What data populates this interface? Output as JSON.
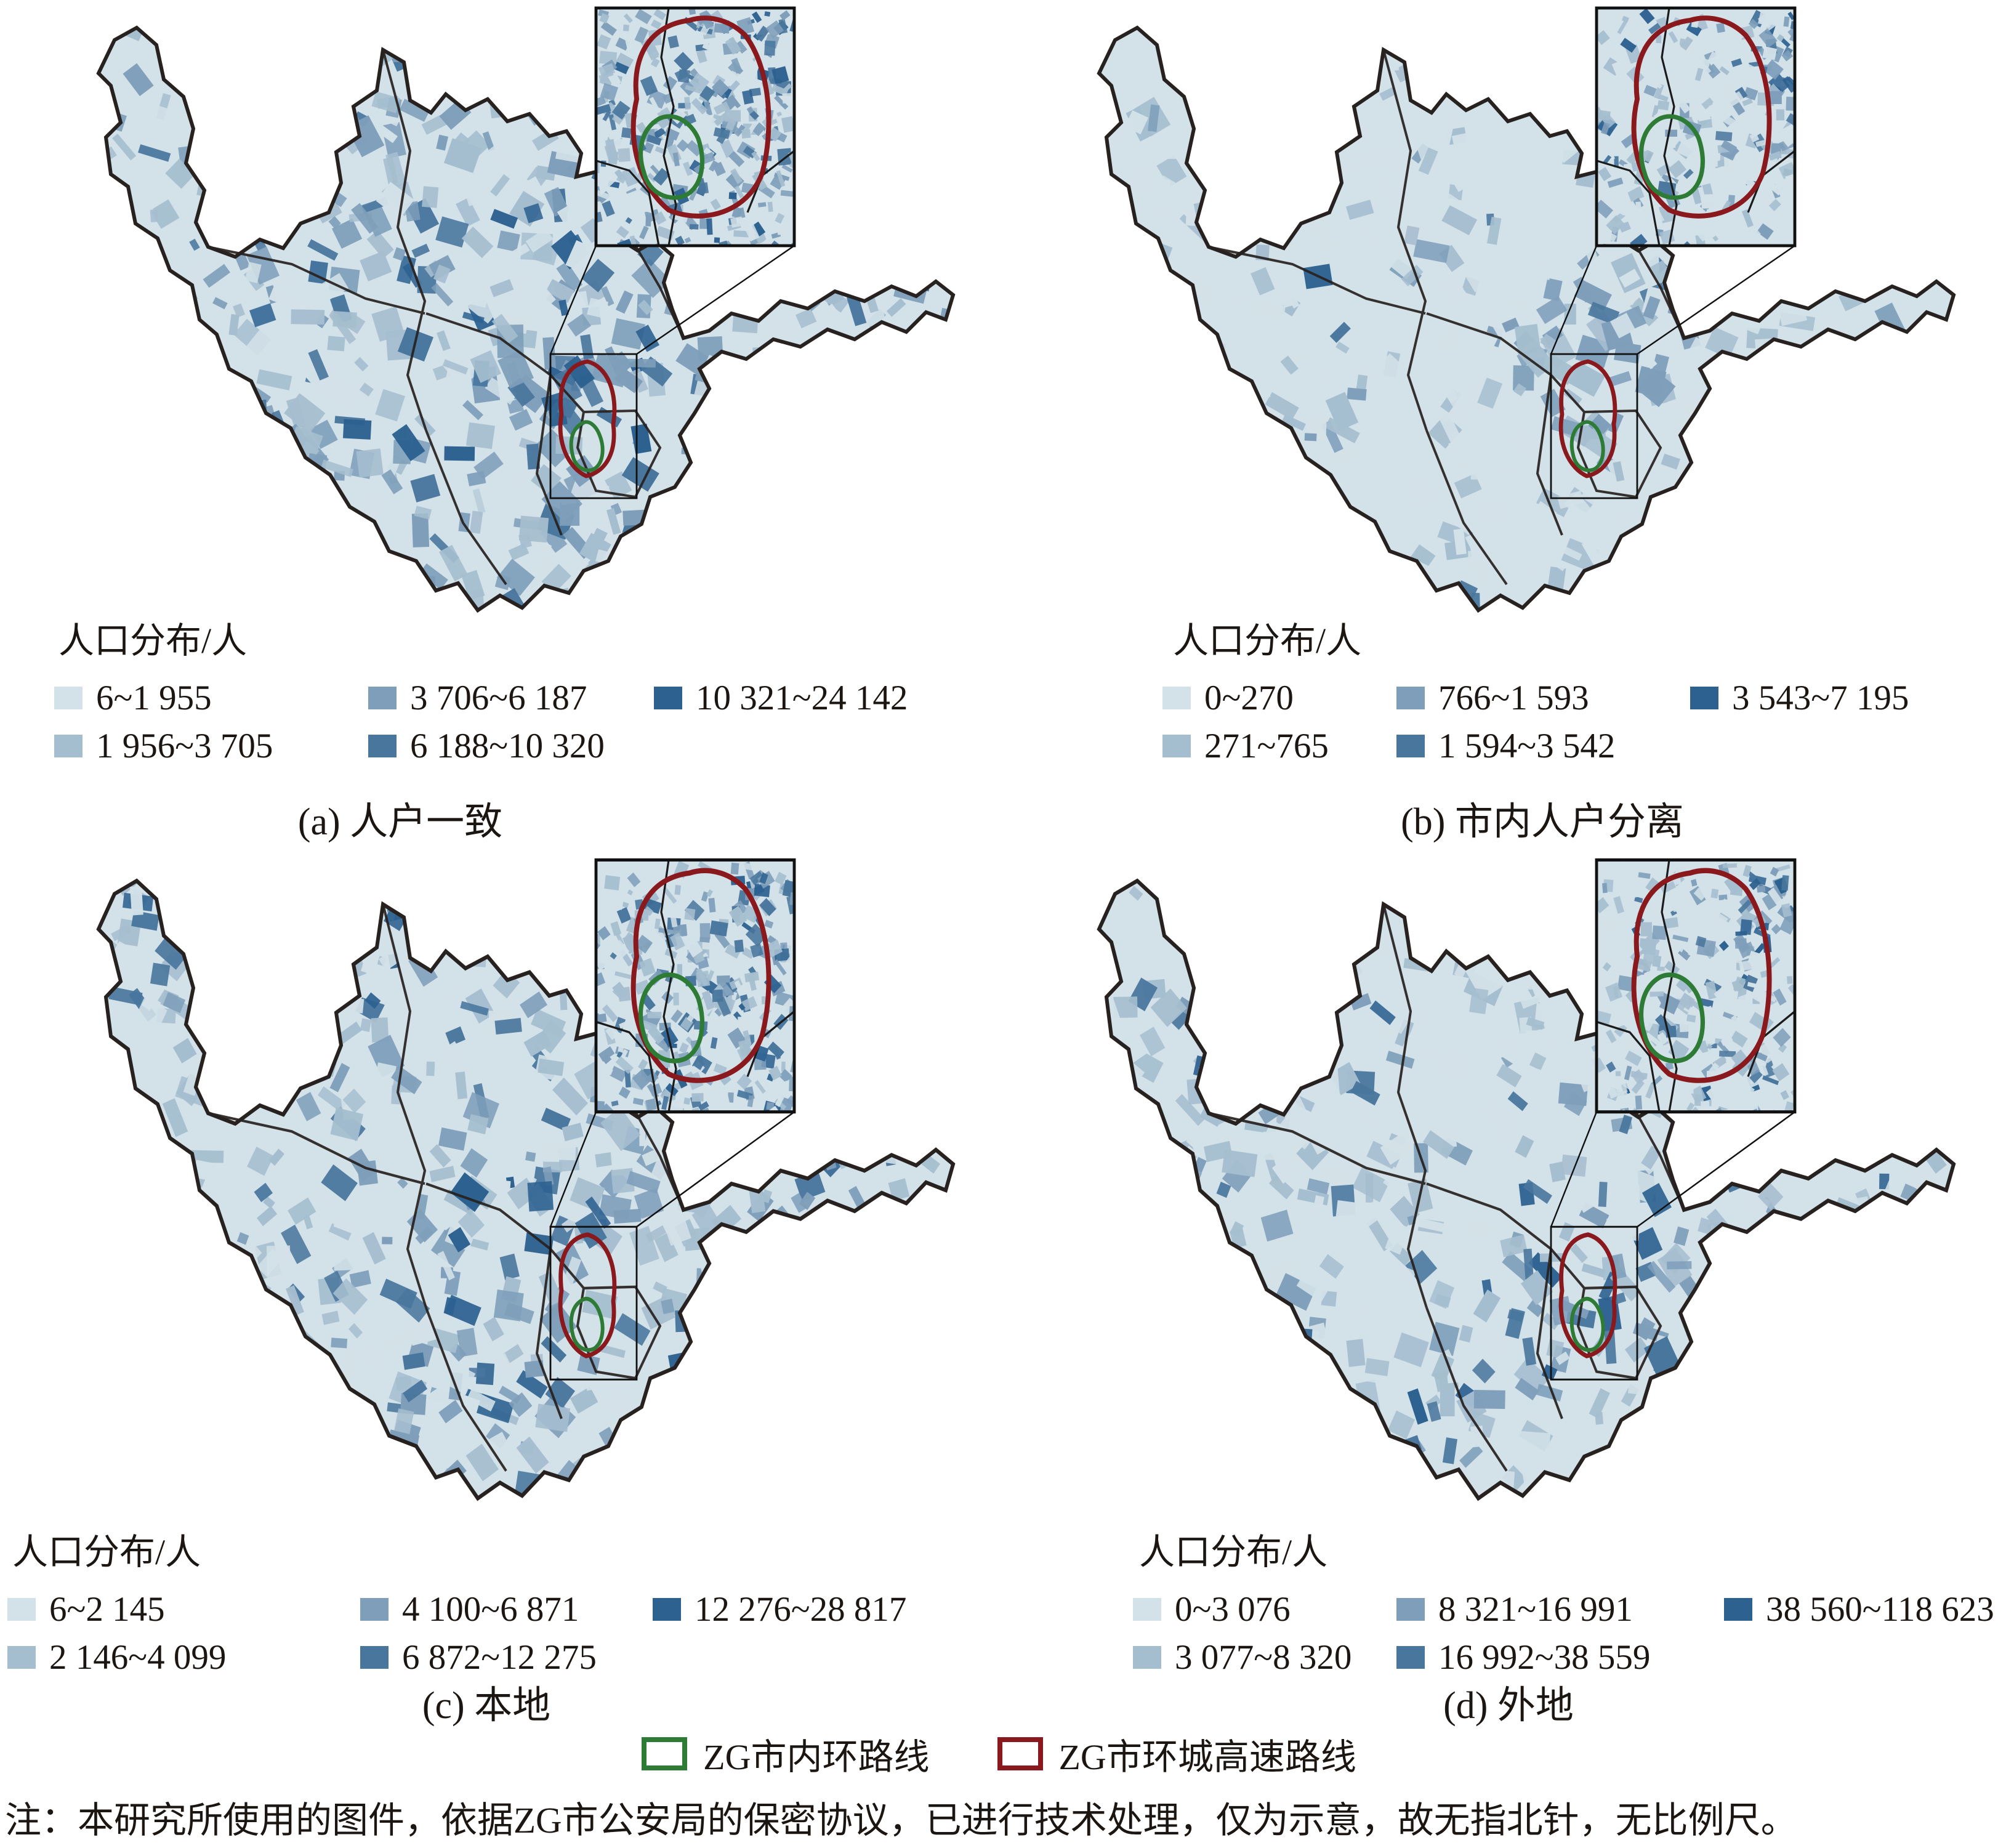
{
  "figure": {
    "palette": [
      "#d3e1e8",
      "#a5becf",
      "#7e9eba",
      "#49769d",
      "#2c6190"
    ],
    "boundary_color": "#27211f",
    "panels": [
      {
        "id": "a",
        "caption": "(a) 人户一致",
        "legend_title": "人口分布/人",
        "classes": [
          {
            "label": "6~1 955"
          },
          {
            "label": "1 956~3 705"
          },
          {
            "label": "3 706~6 187"
          },
          {
            "label": "6 188~10 320"
          },
          {
            "label": "10 321~24 142"
          }
        ]
      },
      {
        "id": "b",
        "caption": "(b) 市内人户分离",
        "legend_title": "人口分布/人",
        "classes": [
          {
            "label": "0~270"
          },
          {
            "label": "271~765"
          },
          {
            "label": "766~1 593"
          },
          {
            "label": "1 594~3 542"
          },
          {
            "label": "3 543~7 195"
          }
        ]
      },
      {
        "id": "c",
        "caption": "(c) 本地",
        "legend_title": "人口分布/人",
        "classes": [
          {
            "label": "6~2 145"
          },
          {
            "label": "2 146~4 099"
          },
          {
            "label": "4 100~6 871"
          },
          {
            "label": "6 872~12 275"
          },
          {
            "label": "12 276~28 817"
          }
        ]
      },
      {
        "id": "d",
        "caption": "(d) 外地",
        "legend_title": "人口分布/人",
        "classes": [
          {
            "label": "0~3 076"
          },
          {
            "label": "3 077~8 320"
          },
          {
            "label": "8 321~16 991"
          },
          {
            "label": "16 992~38 559"
          },
          {
            "label": "38 560~118 623"
          }
        ]
      }
    ],
    "road_legend": [
      {
        "label": "ZG市内环路线",
        "color": "#2e7b36"
      },
      {
        "label": "ZG市环城高速路线",
        "color": "#8a191d"
      }
    ],
    "note": "注：本研究所使用的图件，依据ZG市公安局的保密协议，已进行技术处理，仅为示意，故无指北针，无比例尺。"
  }
}
